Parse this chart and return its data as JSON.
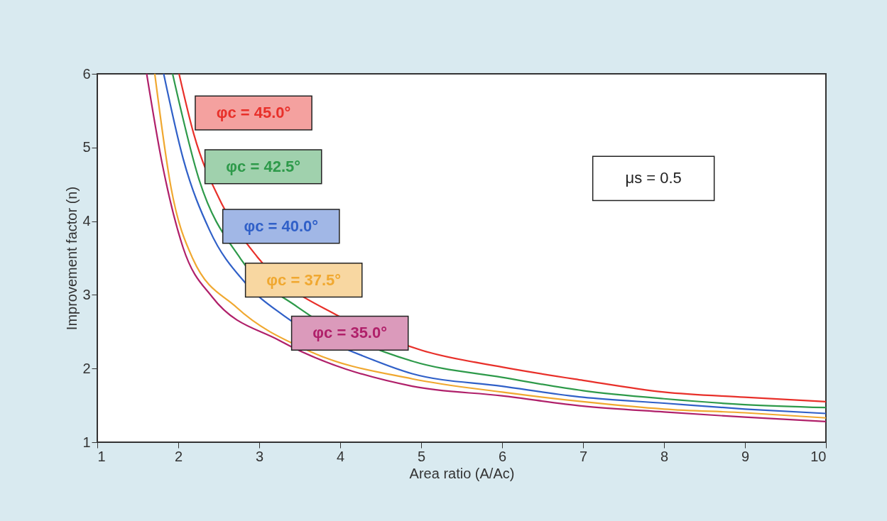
{
  "chart_data": {
    "type": "line",
    "xlabel": "Area ratio (A/Ac)",
    "ylabel": "Improvement factor (n)",
    "xlim": [
      1,
      10
    ],
    "ylim": [
      1,
      6
    ],
    "xticks": [
      1,
      2,
      3,
      4,
      5,
      6,
      7,
      8,
      9,
      10
    ],
    "yticks": [
      1,
      2,
      3,
      4,
      5,
      6
    ],
    "grid": false,
    "legend": false,
    "marker": "none",
    "line_style": "solid",
    "annotations": [
      "μs = 0.5"
    ],
    "series": [
      {
        "name": "φc = 45.0°",
        "color": "#e8302a",
        "x": [
          2.01,
          2.19,
          2.54,
          2.98,
          4.0,
          5.0,
          6,
          7,
          8,
          9,
          10
        ],
        "values": [
          6,
          5.19,
          4.23,
          3.51,
          2.7,
          2.25,
          2.02,
          1.84,
          1.68,
          1.61,
          1.55
        ]
      },
      {
        "name": "φc = 42.5°",
        "color": "#2e9a4a",
        "x": [
          1.93,
          2.25,
          2.77,
          3.48,
          4.89,
          6,
          7,
          8,
          9,
          10
        ],
        "values": [
          6,
          4.59,
          3.49,
          2.83,
          2.1,
          1.88,
          1.7,
          1.59,
          1.51,
          1.47
        ]
      },
      {
        "name": "φc = 40.0°",
        "color": "#3060c8",
        "x": [
          1.82,
          2.06,
          2.39,
          2.83,
          3.3,
          4.4,
          4.89,
          6,
          7,
          8,
          9,
          10
        ],
        "values": [
          6,
          4.85,
          3.87,
          3.16,
          2.72,
          2.12,
          1.93,
          1.76,
          1.61,
          1.53,
          1.45,
          1.39
        ]
      },
      {
        "name": "φc = 37.5°",
        "color": "#f0a830",
        "x": [
          1.71,
          1.91,
          2.18,
          2.72,
          3.61,
          4.89,
          6,
          7,
          8,
          9,
          10
        ],
        "values": [
          6,
          4.46,
          3.49,
          2.83,
          2.24,
          1.86,
          1.68,
          1.55,
          1.45,
          1.4,
          1.33
        ]
      },
      {
        "name": "φc = 35.0°",
        "color": "#b0206a",
        "x": [
          1.61,
          1.8,
          2.06,
          2.42,
          3.25,
          4.89,
          6,
          7,
          8,
          9,
          10
        ],
        "values": [
          6,
          4.79,
          3.64,
          2.97,
          2.38,
          1.76,
          1.63,
          1.49,
          1.41,
          1.34,
          1.28
        ]
      }
    ]
  }
}
